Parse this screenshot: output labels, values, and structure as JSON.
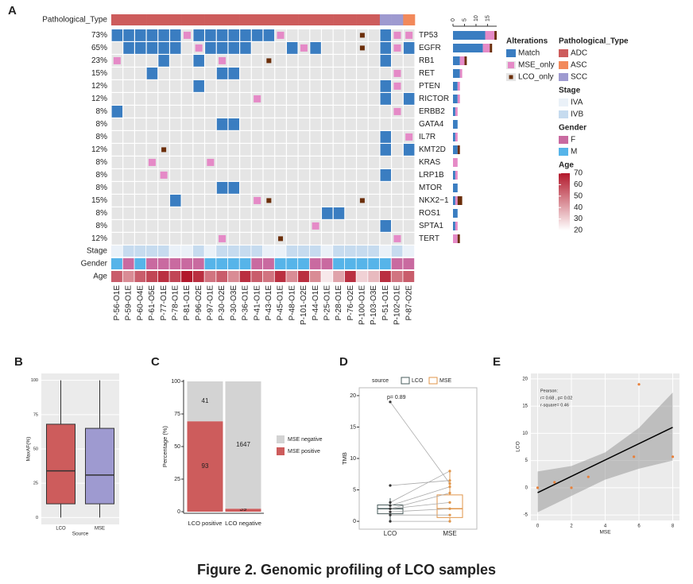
{
  "caption": "Figure 2. Genomic profiling of LCO samples",
  "chart_data": [
    {
      "type": "oncoprint",
      "panel": "A",
      "samples": [
        "P-56-O1E",
        "P-59-O1E",
        "P-60-O4E",
        "P-61-O5E",
        "P-77-O1E",
        "P-78-O1E",
        "P-81-O1E",
        "P-96-O2E",
        "P-97-O1E",
        "P-30-O2E",
        "P-30-O3E",
        "P-36-O1E",
        "P-41-O1E",
        "P-43-O1E",
        "P-45-O1E",
        "P-48-O1E",
        "P-101-O2E",
        "P-44-O1E",
        "P-25-O1E",
        "P-28-O1E",
        "P-76-O2E",
        "P-100-O1E",
        "P-103-O3E",
        "P-51-O1E",
        "P-102-O1E",
        "P-87-O2E"
      ],
      "genes": [
        "TP53",
        "EGFR",
        "RB1",
        "RET",
        "PTEN",
        "RICTOR",
        "ERBB2",
        "GATA4",
        "IL7R",
        "KMT2D",
        "KRAS",
        "LRP1B",
        "MTOR",
        "NKX2−1",
        "ROS1",
        "SPTA1",
        "TERT"
      ],
      "frequencies": [
        73,
        65,
        23,
        15,
        12,
        12,
        8,
        8,
        8,
        12,
        8,
        8,
        8,
        15,
        8,
        8,
        12
      ],
      "frequency_labels": [
        "73%",
        "65%",
        "23%",
        "15%",
        "12%",
        "12%",
        "8%",
        "8%",
        "8%",
        "12%",
        "8%",
        "8%",
        "8%",
        "15%",
        "8%",
        "8%",
        "12%"
      ],
      "alterations": {
        "legend_title": "Alterations",
        "categories": [
          "Match",
          "MSE_only",
          "LCO_only"
        ],
        "colors": [
          "#3a7dc1",
          "#e58ac7",
          "#6b2e0a"
        ]
      },
      "matrix": [
        [
          "Match",
          "Match",
          "Match",
          "Match",
          "Match",
          "Match",
          "MSE_only",
          "Match",
          "Match",
          "Match",
          "Match",
          "Match",
          "Match",
          "Match",
          "MSE_only",
          null,
          null,
          null,
          null,
          null,
          null,
          "LCO_only",
          null,
          "Match",
          "MSE_only",
          "MSE_only"
        ],
        [
          null,
          "Match",
          "Match",
          "Match",
          "Match",
          "Match",
          null,
          "MSE_only",
          "Match",
          "Match",
          "Match",
          "Match",
          null,
          null,
          null,
          "Match",
          "MSE_only",
          "Match",
          null,
          null,
          null,
          "LCO_only",
          null,
          "Match",
          "MSE_only",
          "Match"
        ],
        [
          "MSE_only",
          null,
          null,
          null,
          "Match",
          null,
          null,
          "Match",
          null,
          "MSE_only",
          null,
          null,
          null,
          "LCO_only",
          null,
          null,
          null,
          null,
          null,
          null,
          null,
          null,
          null,
          "Match",
          null,
          null
        ],
        [
          null,
          null,
          null,
          "Match",
          null,
          null,
          null,
          null,
          null,
          "Match",
          "Match",
          null,
          null,
          null,
          null,
          null,
          null,
          null,
          null,
          null,
          null,
          null,
          null,
          null,
          "MSE_only",
          null
        ],
        [
          null,
          null,
          null,
          null,
          null,
          null,
          null,
          "Match",
          null,
          null,
          null,
          null,
          null,
          null,
          null,
          null,
          null,
          null,
          null,
          null,
          null,
          null,
          null,
          "Match",
          "MSE_only",
          null
        ],
        [
          null,
          null,
          null,
          null,
          null,
          null,
          null,
          null,
          null,
          null,
          null,
          null,
          "MSE_only",
          null,
          null,
          null,
          null,
          null,
          null,
          null,
          null,
          null,
          null,
          "Match",
          null,
          "Match"
        ],
        [
          "Match",
          null,
          null,
          null,
          null,
          null,
          null,
          null,
          null,
          null,
          null,
          null,
          null,
          null,
          null,
          null,
          null,
          null,
          null,
          null,
          null,
          null,
          null,
          null,
          "MSE_only",
          null
        ],
        [
          null,
          null,
          null,
          null,
          null,
          null,
          null,
          null,
          null,
          "Match",
          "Match",
          null,
          null,
          null,
          null,
          null,
          null,
          null,
          null,
          null,
          null,
          null,
          null,
          null,
          null,
          null
        ],
        [
          null,
          null,
          null,
          null,
          null,
          null,
          null,
          null,
          null,
          null,
          null,
          null,
          null,
          null,
          null,
          null,
          null,
          null,
          null,
          null,
          null,
          null,
          null,
          "Match",
          null,
          "MSE_only"
        ],
        [
          null,
          null,
          null,
          null,
          "LCO_only",
          null,
          null,
          null,
          null,
          null,
          null,
          null,
          null,
          null,
          null,
          null,
          null,
          null,
          null,
          null,
          null,
          null,
          null,
          "Match",
          null,
          "Match"
        ],
        [
          null,
          null,
          null,
          "MSE_only",
          null,
          null,
          null,
          null,
          "MSE_only",
          null,
          null,
          null,
          null,
          null,
          null,
          null,
          null,
          null,
          null,
          null,
          null,
          null,
          null,
          null,
          null,
          null
        ],
        [
          null,
          null,
          null,
          null,
          "MSE_only",
          null,
          null,
          null,
          null,
          null,
          null,
          null,
          null,
          null,
          null,
          null,
          null,
          null,
          null,
          null,
          null,
          null,
          null,
          "Match",
          null,
          null
        ],
        [
          null,
          null,
          null,
          null,
          null,
          null,
          null,
          null,
          null,
          "Match",
          "Match",
          null,
          null,
          null,
          null,
          null,
          null,
          null,
          null,
          null,
          null,
          null,
          null,
          null,
          null,
          null
        ],
        [
          null,
          null,
          null,
          null,
          null,
          "Match",
          null,
          null,
          null,
          null,
          null,
          null,
          "MSE_only",
          "LCO_only",
          null,
          null,
          null,
          null,
          null,
          null,
          null,
          "LCO_only",
          null,
          null,
          null,
          null
        ],
        [
          null,
          null,
          null,
          null,
          null,
          null,
          null,
          null,
          null,
          null,
          null,
          null,
          null,
          null,
          null,
          null,
          null,
          null,
          "Match",
          "Match",
          null,
          null,
          null,
          null,
          null,
          null
        ],
        [
          null,
          null,
          null,
          null,
          null,
          null,
          null,
          null,
          null,
          null,
          null,
          null,
          null,
          null,
          null,
          null,
          null,
          "MSE_only",
          null,
          null,
          null,
          null,
          null,
          "Match",
          null,
          null
        ],
        [
          null,
          null,
          null,
          null,
          null,
          null,
          null,
          null,
          null,
          "MSE_only",
          null,
          null,
          null,
          null,
          "LCO_only",
          null,
          null,
          null,
          null,
          null,
          null,
          null,
          null,
          null,
          "MSE_only",
          null
        ]
      ],
      "counts": [
        [
          14,
          13,
          3,
          3,
          2,
          2,
          1,
          2,
          1,
          2,
          0,
          1,
          2,
          1,
          2,
          1,
          0
        ],
        [
          4,
          3,
          2,
          1,
          1,
          1,
          1,
          0,
          1,
          0,
          2,
          1,
          0,
          1,
          0,
          1,
          2
        ],
        [
          1,
          1,
          1,
          0,
          0,
          0,
          0,
          0,
          0,
          1,
          0,
          0,
          0,
          2,
          0,
          0,
          1
        ]
      ],
      "count_xlim": [
        0,
        19
      ],
      "count_xticks": [
        0,
        5,
        10,
        15
      ],
      "annotation_tracks": [
        {
          "name": "Pathological_Type",
          "values": [
            "ADC",
            "ADC",
            "ADC",
            "ADC",
            "ADC",
            "ADC",
            "ADC",
            "ADC",
            "ADC",
            "ADC",
            "ADC",
            "ADC",
            "ADC",
            "ADC",
            "ADC",
            "ADC",
            "ADC",
            "ADC",
            "ADC",
            "ADC",
            "ADC",
            "ADC",
            "ADC",
            "SCC",
            "SCC",
            "ASC"
          ],
          "legend": {
            "categories": [
              "ADC",
              "ASC",
              "SCC"
            ],
            "colors": [
              "#cd5c5c",
              "#f2895b",
              "#9e9ad0"
            ]
          }
        },
        {
          "name": "Stage",
          "values": [
            "IVA",
            "IVB",
            "IVB",
            "IVB",
            "IVB",
            "IVA",
            "IVA",
            "IVB",
            "IVA",
            "IVB",
            "IVB",
            "IVB",
            "IVB",
            "IVA",
            "IVA",
            "IVB",
            "IVB",
            "IVB",
            "IVA",
            "IVB",
            "IVB",
            "IVB",
            "IVB",
            "IVA",
            "IVB",
            "IVA"
          ],
          "legend": {
            "categories": [
              "IVA",
              "IVB"
            ],
            "colors": [
              "#eaf1f8",
              "#c6dbef"
            ]
          }
        },
        {
          "name": "Gender",
          "values": [
            "M",
            "F",
            "M",
            "F",
            "F",
            "F",
            "F",
            "F",
            "M",
            "M",
            "M",
            "M",
            "F",
            "F",
            "M",
            "M",
            "M",
            "F",
            "F",
            "M",
            "M",
            "M",
            "M",
            "M",
            "F",
            "F"
          ],
          "legend": {
            "categories": [
              "F",
              "M"
            ],
            "colors": [
              "#c96aa0",
              "#56b4e9"
            ]
          }
        },
        {
          "name": "Age",
          "values": [
            55,
            45,
            55,
            60,
            65,
            60,
            70,
            65,
            50,
            55,
            45,
            65,
            55,
            50,
            65,
            45,
            65,
            45,
            25,
            40,
            65,
            30,
            35,
            65,
            50,
            55
          ],
          "colorbar": {
            "lim": [
              20,
              70
            ],
            "ticks": [
              70,
              60,
              50,
              40,
              30,
              20
            ],
            "colors": [
              "#ffffff",
              "#b2182b"
            ]
          }
        }
      ]
    },
    {
      "type": "box",
      "panel": "B",
      "categories": [
        "LCO",
        "MSE"
      ],
      "colors": [
        "#cd5c5c",
        "#9e9ad0"
      ],
      "boxes": [
        {
          "whislo": 0,
          "q1": 10,
          "median": 34,
          "q3": 68,
          "whishi": 100
        },
        {
          "whislo": 0,
          "q1": 10,
          "median": 31,
          "q3": 65,
          "whishi": 100
        }
      ],
      "xlabel": "Source",
      "ylabel": "MaxAF(%)",
      "ylim": [
        -5,
        105
      ],
      "yticks": [
        0,
        25,
        50,
        75,
        100
      ]
    },
    {
      "type": "bar",
      "stacking": "percent",
      "panel": "C",
      "categories": [
        "LCO positive",
        "LCO negative"
      ],
      "series": [
        {
          "name": "MSE positive",
          "color": "#cd5c5c",
          "values": [
            93,
            39
          ]
        },
        {
          "name": "MSE negative",
          "color": "#d3d3d3",
          "values": [
            41,
            1647
          ]
        }
      ],
      "ylabel": "Percentage (%)",
      "ylim": [
        0,
        100
      ],
      "yticks": [
        0,
        25,
        50,
        75,
        100
      ]
    },
    {
      "type": "paired_box",
      "panel": "D",
      "legend_title": "source",
      "categories": [
        "LCO",
        "MSE"
      ],
      "colors": [
        "#4a5c5c",
        "#e0954a"
      ],
      "boxes": [
        {
          "whislo": 0,
          "q1": 1.2,
          "median": 2,
          "q3": 2.6,
          "whishi": 3.7
        },
        {
          "whislo": 0,
          "q1": 0.6,
          "median": 2,
          "q3": 4.2,
          "whishi": 8
        }
      ],
      "points": [
        [
          19,
          5.7,
          3,
          2.5,
          2,
          2,
          1.5,
          1,
          0
        ],
        [
          6,
          6.5,
          8,
          5.5,
          4.5,
          3,
          2,
          1,
          0
        ]
      ],
      "annotation": "p= 0.89",
      "ylabel": "TMB",
      "ylim": [
        -1,
        21
      ],
      "yticks": [
        0,
        5,
        10,
        15,
        20
      ]
    },
    {
      "type": "scatter",
      "panel": "E",
      "x": [
        0,
        1,
        2,
        3,
        5.7,
        6,
        8
      ],
      "y": [
        0,
        1,
        0,
        2,
        5.7,
        19,
        5.7
      ],
      "color": "#e8803a",
      "fit": {
        "x": [
          0,
          8
        ],
        "y": [
          -0.9,
          11.1
        ]
      },
      "band": {
        "x": [
          0,
          2,
          4,
          6,
          8
        ],
        "lower": [
          -4.5,
          -1.5,
          1.5,
          3.5,
          5
        ],
        "upper": [
          3,
          4,
          6.5,
          11,
          17.5
        ]
      },
      "annotations": [
        "Pearson:",
        "r= 0.68 , p= 0.02",
        "r-square= 0.46"
      ],
      "xlabel": "MSE",
      "ylabel": "LCO",
      "xlim": [
        -0.4,
        8.4
      ],
      "ylim": [
        -6,
        21
      ],
      "xticks": [
        0,
        2,
        4,
        6,
        8
      ],
      "yticks": [
        -5,
        0,
        5,
        10,
        15,
        20
      ]
    }
  ]
}
